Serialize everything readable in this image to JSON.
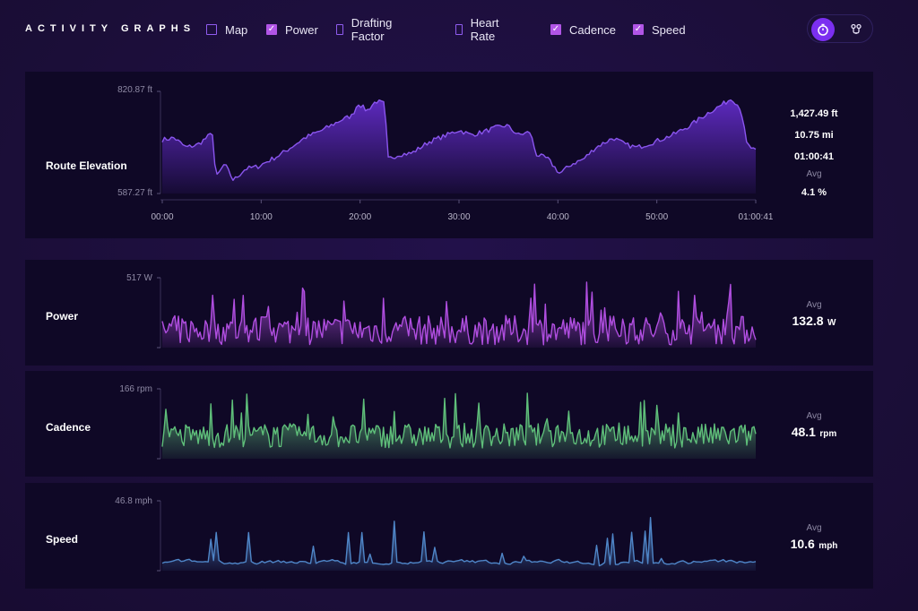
{
  "header": {
    "title": "ACTIVITY GRAPHS",
    "toggles": [
      {
        "label": "Map",
        "checked": false
      },
      {
        "label": "Power",
        "checked": true
      },
      {
        "label": "Drafting Factor",
        "checked": false
      },
      {
        "label": "Heart Rate",
        "checked": false
      },
      {
        "label": "Cadence",
        "checked": true
      },
      {
        "label": "Speed",
        "checked": true
      }
    ],
    "mode_icons": [
      "stopwatch-icon",
      "route-icon"
    ]
  },
  "colors": {
    "accent": "#7b2ff0",
    "checkbox_on": "#b155e6",
    "elevation": "#6a2fd8",
    "power": "#b04ee0",
    "cadence": "#5fbf7a",
    "speed": "#4f86c8"
  },
  "elevation": {
    "label": "Route Elevation",
    "axis_max": "820.87 ft",
    "axis_min": "587.27 ft",
    "time_labels": [
      "00:00",
      "10:00",
      "20:00",
      "30:00",
      "40:00",
      "50:00",
      "01:00:41"
    ],
    "stats": [
      "1,427.49 ft",
      "10.75 mi",
      "01:00:41"
    ],
    "avg_label": "Avg",
    "avg_value": "4.1 %"
  },
  "power": {
    "label": "Power",
    "axis_max": "517 W",
    "avg_label": "Avg",
    "avg_value": "132.8",
    "avg_unit": "W"
  },
  "cadence": {
    "label": "Cadence",
    "axis_max": "166 rpm",
    "avg_label": "Avg",
    "avg_value": "48.1",
    "avg_unit": "rpm"
  },
  "speed": {
    "label": "Speed",
    "axis_max": "46.8 mph",
    "avg_label": "Avg",
    "avg_value": "10.6",
    "avg_unit": "mph"
  }
}
